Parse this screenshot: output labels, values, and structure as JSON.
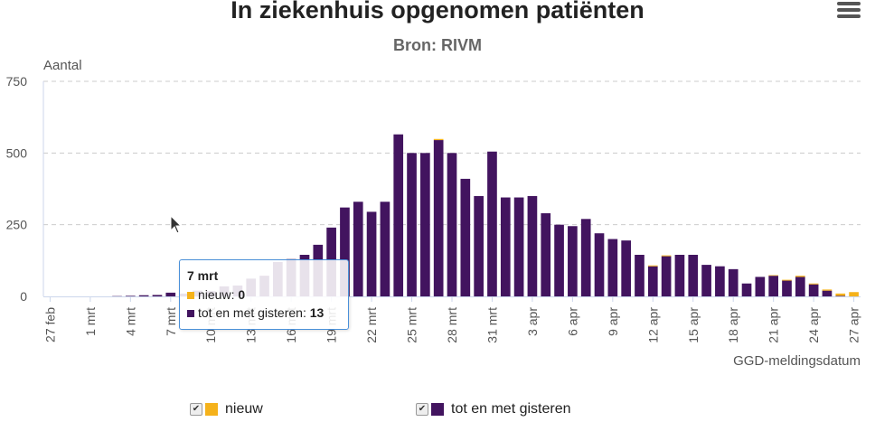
{
  "title": "In ziekenhuis opgenomen patiënten",
  "subtitle": "Bron: RIVM",
  "menu_icon": "hamburger-menu-icon",
  "colors": {
    "nieuw": "#f5b21b",
    "gisteren": "#42145f",
    "grid": "#cccccc"
  },
  "tooltip": {
    "date": "7 mrt",
    "row1_label": "nieuw: ",
    "row1_value": "0",
    "row2_label": "tot en met gisteren: ",
    "row2_value": "13"
  },
  "legend": [
    {
      "label": "nieuw",
      "checked": true
    },
    {
      "label": "tot en met gisteren",
      "checked": true
    }
  ],
  "chart_data": {
    "type": "bar",
    "stacked": true,
    "title": "In ziekenhuis opgenomen patiënten",
    "subtitle": "Bron: RIVM",
    "ylabel": "Aantal",
    "xlabel": "GGD-meldingsdatum",
    "ylim": [
      0,
      750
    ],
    "yticks": [
      0,
      250,
      500,
      750
    ],
    "grid": true,
    "legend_position": "bottom",
    "x_tick_labels": [
      "27 feb",
      "1 mrt",
      "4 mrt",
      "7 mrt",
      "10 mrt",
      "13 mrt",
      "16 mrt",
      "19 mrt",
      "22 mrt",
      "25 mrt",
      "28 mrt",
      "31 mrt",
      "3 apr",
      "6 apr",
      "9 apr",
      "12 apr",
      "15 apr",
      "18 apr",
      "21 apr",
      "24 apr",
      "27 apr"
    ],
    "categories": [
      "27 feb",
      "28 feb",
      "29 feb",
      "1 mrt",
      "2 mrt",
      "3 mrt",
      "4 mrt",
      "5 mrt",
      "6 mrt",
      "7 mrt",
      "8 mrt",
      "9 mrt",
      "10 mrt",
      "11 mrt",
      "12 mrt",
      "13 mrt",
      "14 mrt",
      "15 mrt",
      "16 mrt",
      "17 mrt",
      "18 mrt",
      "19 mrt",
      "20 mrt",
      "21 mrt",
      "22 mrt",
      "23 mrt",
      "24 mrt",
      "25 mrt",
      "26 mrt",
      "27 mrt",
      "28 mrt",
      "29 mrt",
      "30 mrt",
      "31 mrt",
      "1 apr",
      "2 apr",
      "3 apr",
      "4 apr",
      "5 apr",
      "6 apr",
      "7 apr",
      "8 apr",
      "9 apr",
      "10 apr",
      "11 apr",
      "12 apr",
      "13 apr",
      "14 apr",
      "15 apr",
      "16 apr",
      "17 apr",
      "18 apr",
      "19 apr",
      "20 apr",
      "21 apr",
      "22 apr",
      "23 apr",
      "24 apr",
      "25 apr",
      "26 apr",
      "27 apr"
    ],
    "series": [
      {
        "name": "nieuw",
        "values": [
          0,
          0,
          0,
          0,
          0,
          0,
          0,
          0,
          0,
          0,
          0,
          0,
          0,
          0,
          0,
          0,
          0,
          0,
          0,
          0,
          0,
          0,
          0,
          0,
          0,
          0,
          0,
          0,
          0,
          4,
          0,
          0,
          0,
          0,
          0,
          0,
          0,
          0,
          0,
          0,
          0,
          0,
          0,
          0,
          0,
          3,
          3,
          0,
          0,
          0,
          0,
          0,
          0,
          0,
          2,
          3,
          4,
          3,
          4,
          8,
          15
        ]
      },
      {
        "name": "tot en met gisteren",
        "values": [
          0,
          0,
          0,
          0,
          0,
          1,
          2,
          4,
          5,
          13,
          10,
          20,
          18,
          35,
          38,
          62,
          72,
          120,
          130,
          145,
          180,
          240,
          310,
          330,
          295,
          330,
          565,
          500,
          500,
          545,
          500,
          410,
          350,
          505,
          345,
          345,
          350,
          290,
          250,
          245,
          270,
          220,
          200,
          195,
          145,
          105,
          140,
          145,
          145,
          110,
          105,
          95,
          45,
          68,
          72,
          55,
          68,
          42,
          20,
          2,
          0
        ]
      }
    ]
  }
}
